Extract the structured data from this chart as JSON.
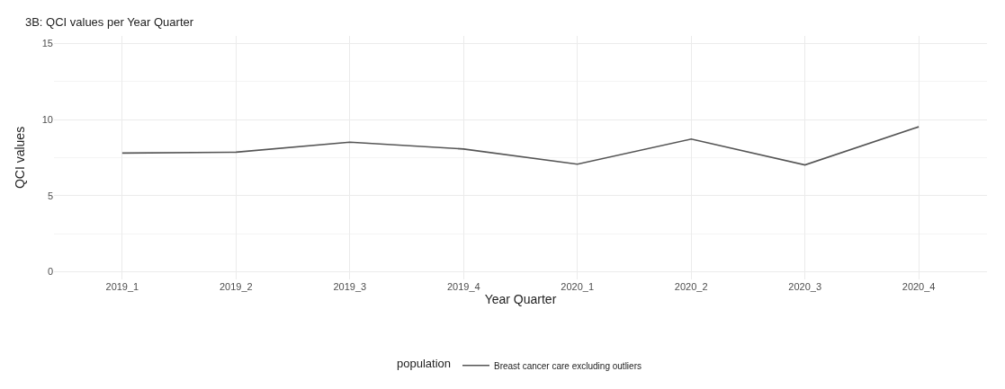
{
  "chart_data": {
    "type": "line",
    "title": "3B: QCI values per Year Quarter",
    "xlabel": "Year Quarter",
    "ylabel": "QCI values",
    "legend_title": "population",
    "categories": [
      "2019_1",
      "2019_2",
      "2019_3",
      "2019_4",
      "2020_1",
      "2020_2",
      "2020_3",
      "2020_4"
    ],
    "series": [
      {
        "name": "Breast cancer care excluding outliers",
        "color": "#555555",
        "values": [
          7.8,
          7.86,
          8.52,
          8.07,
          7.07,
          8.72,
          7.02,
          9.53
        ]
      }
    ],
    "ylim": [
      -0.5,
      15.5
    ],
    "yticks": [
      0,
      5,
      10,
      15
    ],
    "grid": true,
    "legend": "bottom",
    "marker": "none",
    "line_style": "solid"
  }
}
